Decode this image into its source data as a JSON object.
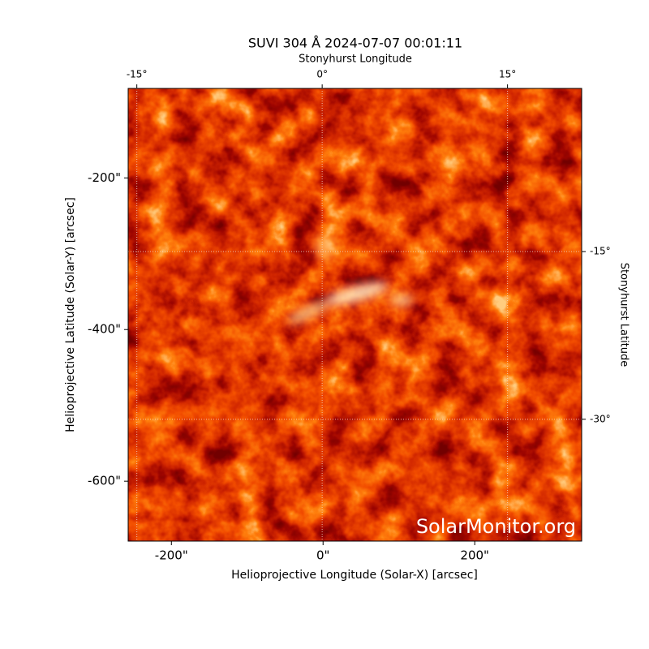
{
  "chart_data": {
    "type": "image",
    "title": "SUVI 304 Å 2024-07-07 00:01:11",
    "xlabel": "Helioprojective Longitude (Solar-X) [arcsec]",
    "ylabel": "Helioprojective Latitude (Solar-Y) [arcsec]",
    "x2label": "Stonyhurst Longitude",
    "y2label": "Stonyhurst Latitude",
    "xlim": [
      -257,
      341
    ],
    "ylim": [
      -679,
      -82
    ],
    "xticks": [
      {
        "value": -200,
        "label": "-200\""
      },
      {
        "value": 0,
        "label": "0\""
      },
      {
        "value": 200,
        "label": "200\""
      }
    ],
    "yticks": [
      {
        "value": -200,
        "label": "-200\""
      },
      {
        "value": -400,
        "label": "-400\""
      },
      {
        "value": -600,
        "label": "-600\""
      }
    ],
    "x2lim": [
      -15.7,
      21
    ],
    "x2ticks": [
      {
        "value": -15,
        "label": "-15°"
      },
      {
        "value": 0,
        "label": "0°"
      },
      {
        "value": 15,
        "label": "15°"
      }
    ],
    "y2lim": [
      -40.9,
      -0.4
    ],
    "y2ticks": [
      {
        "value": -15,
        "label": "-15°"
      },
      {
        "value": -30,
        "label": "-30°"
      }
    ],
    "grid": true,
    "watermark": "SolarMonitor.org"
  }
}
